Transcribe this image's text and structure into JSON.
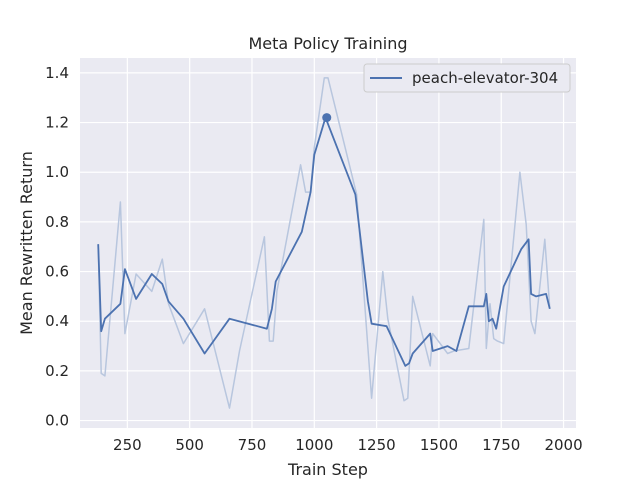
{
  "chart_data": {
    "type": "line",
    "title": "Meta Policy Training",
    "xlabel": "Train Step",
    "ylabel": "Mean Rewritten Return",
    "xlim": [
      60,
      2050
    ],
    "ylim": [
      -0.03,
      1.46
    ],
    "x_ticks": [
      250,
      500,
      750,
      1000,
      1250,
      1500,
      1750,
      2000
    ],
    "x_tick_labels": [
      "250",
      "500",
      "750",
      "1000",
      "1250",
      "1500",
      "1750",
      "2000"
    ],
    "y_ticks": [
      0.0,
      0.2,
      0.4,
      0.6,
      0.8,
      1.0,
      1.2,
      1.4
    ],
    "y_tick_labels": [
      "0.0",
      "0.2",
      "0.4",
      "0.6",
      "0.8",
      "1.0",
      "1.2",
      "1.4"
    ],
    "grid": true,
    "legend_position": "top-right",
    "colors": {
      "line": "#4c72b0",
      "raw": "#b8c6de",
      "plot_bg": "#eaeaf2",
      "grid": "#ffffff"
    },
    "series": [
      {
        "name": "peach-elevator-304",
        "style": "smoothed",
        "x": [
          133,
          145,
          160,
          222,
          240,
          285,
          348,
          390,
          415,
          475,
          560,
          660,
          810,
          830,
          845,
          950,
          985,
          1000,
          1045,
          1165,
          1215,
          1230,
          1290,
          1365,
          1380,
          1395,
          1465,
          1475,
          1535,
          1570,
          1620,
          1680,
          1690,
          1700,
          1715,
          1730,
          1760,
          1830,
          1860,
          1870,
          1890,
          1930,
          1945
        ],
        "values": [
          0.71,
          0.36,
          0.41,
          0.47,
          0.61,
          0.49,
          0.59,
          0.55,
          0.48,
          0.41,
          0.27,
          0.41,
          0.37,
          0.45,
          0.56,
          0.76,
          0.92,
          1.07,
          1.22,
          0.91,
          0.48,
          0.39,
          0.38,
          0.22,
          0.23,
          0.27,
          0.35,
          0.28,
          0.3,
          0.28,
          0.46,
          0.46,
          0.51,
          0.4,
          0.41,
          0.37,
          0.54,
          0.69,
          0.73,
          0.51,
          0.5,
          0.51,
          0.45
        ]
      },
      {
        "name": "",
        "style": "raw",
        "x": [
          133,
          145,
          160,
          222,
          240,
          285,
          348,
          390,
          415,
          475,
          560,
          660,
          700,
          800,
          820,
          835,
          850,
          945,
          965,
          985,
          1000,
          1040,
          1055,
          1170,
          1230,
          1275,
          1295,
          1360,
          1375,
          1395,
          1465,
          1475,
          1535,
          1560,
          1620,
          1680,
          1690,
          1705,
          1720,
          1735,
          1760,
          1825,
          1850,
          1870,
          1885,
          1925,
          1945
        ],
        "values": [
          0.71,
          0.19,
          0.18,
          0.88,
          0.35,
          0.59,
          0.52,
          0.65,
          0.47,
          0.31,
          0.45,
          0.05,
          0.28,
          0.74,
          0.32,
          0.32,
          0.52,
          1.03,
          0.92,
          0.92,
          1.1,
          1.38,
          1.38,
          0.91,
          0.09,
          0.6,
          0.41,
          0.08,
          0.09,
          0.5,
          0.22,
          0.35,
          0.27,
          0.28,
          0.29,
          0.81,
          0.29,
          0.47,
          0.33,
          0.32,
          0.31,
          1.0,
          0.79,
          0.4,
          0.35,
          0.73,
          0.45
        ]
      }
    ],
    "marker": {
      "x": 1050,
      "y": 1.22
    }
  }
}
